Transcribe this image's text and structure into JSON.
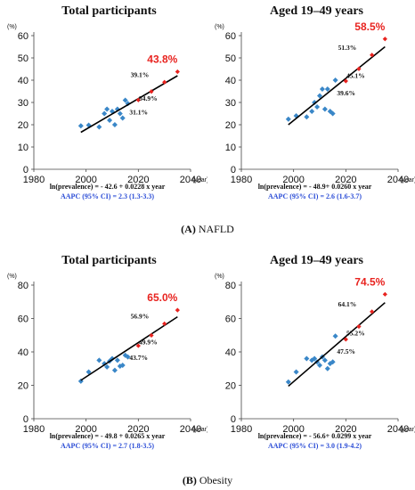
{
  "colors": {
    "observed": "#3a87c8",
    "projected": "#e8231f",
    "fit_line": "#000000",
    "aapc_text": "#2a4cd6"
  },
  "captions": [
    {
      "letter": "(A)",
      "text": "NAFLD"
    },
    {
      "letter": "(B)",
      "text": "Obesity"
    }
  ],
  "chart_data": [
    {
      "type": "scatter",
      "title": "Total participants",
      "y_unit": "(%)",
      "x_unit": "(year)",
      "xlim": [
        1980,
        2040
      ],
      "ylim": [
        0,
        60
      ],
      "xticks": [
        1980,
        2000,
        2020,
        2040
      ],
      "yticks": [
        0,
        10,
        20,
        30,
        40,
        50,
        60
      ],
      "observed": {
        "x": [
          1998,
          2001,
          2005,
          2007,
          2008,
          2009,
          2010,
          2011,
          2012,
          2013,
          2014,
          2015,
          2016
        ],
        "y": [
          19.5,
          19.8,
          19.0,
          25.0,
          27.0,
          22.0,
          26.0,
          20.0,
          27.0,
          25.0,
          23.0,
          31.0,
          29.5
        ]
      },
      "projected": {
        "x": [
          2020,
          2025,
          2030,
          2035
        ],
        "y": [
          31.1,
          34.9,
          39.1,
          43.8
        ]
      },
      "fit_line": {
        "x": [
          1998,
          2035
        ],
        "y": [
          16.6,
          42.0
        ]
      },
      "labels": [
        "39.1%",
        "34.9%",
        "31.1%"
      ],
      "highlight": "43.8%",
      "equation": "ln(prevalence) = - 42.6 + 0.0228  x year",
      "aapc": "AAPC (95% CI) =  2.3  (1.3-3.3)"
    },
    {
      "type": "scatter",
      "title": "Aged 19–49 years",
      "y_unit": "(%)",
      "x_unit": "(year)",
      "xlim": [
        1980,
        2040
      ],
      "ylim": [
        0,
        60
      ],
      "xticks": [
        1980,
        2000,
        2020,
        2040
      ],
      "yticks": [
        0,
        10,
        20,
        30,
        40,
        50,
        60
      ],
      "observed": {
        "x": [
          1998,
          2001,
          2005,
          2007,
          2008,
          2009,
          2010,
          2011,
          2012,
          2013,
          2014,
          2015,
          2016
        ],
        "y": [
          22.5,
          24.0,
          23.5,
          26.0,
          30.0,
          28.0,
          33.0,
          36.0,
          27.0,
          36.0,
          26.0,
          25.0,
          40.0
        ]
      },
      "projected": {
        "x": [
          2020,
          2025,
          2030,
          2035
        ],
        "y": [
          39.6,
          45.1,
          51.3,
          58.5
        ]
      },
      "fit_line": {
        "x": [
          1998,
          2035
        ],
        "y": [
          20.0,
          55.0
        ]
      },
      "labels": [
        "51.3%",
        "45.1%",
        "39.6%"
      ],
      "highlight": "58.5%",
      "equation": "ln(prevalence) = - 48.9+ 0.0260  x year",
      "aapc": "AAPC (95% CI) =  2.6  (1.6-3.7)"
    },
    {
      "type": "scatter",
      "title": "Total participants",
      "y_unit": "(%)",
      "x_unit": "(year)",
      "xlim": [
        1980,
        2040
      ],
      "ylim": [
        0,
        80
      ],
      "xticks": [
        1980,
        2000,
        2020,
        2040
      ],
      "yticks": [
        0,
        20,
        40,
        60,
        80
      ],
      "observed": {
        "x": [
          1998,
          2001,
          2005,
          2007,
          2008,
          2009,
          2010,
          2011,
          2012,
          2013,
          2014,
          2015,
          2016
        ],
        "y": [
          22.5,
          28.0,
          35.0,
          33.0,
          31.0,
          34.5,
          36.0,
          29.0,
          35.0,
          31.5,
          32.0,
          38.0,
          37.0
        ]
      },
      "projected": {
        "x": [
          2020,
          2025,
          2030,
          2035
        ],
        "y": [
          43.7,
          49.9,
          56.9,
          65.0
        ]
      },
      "fit_line": {
        "x": [
          1998,
          2035
        ],
        "y": [
          23.0,
          61.0
        ]
      },
      "labels": [
        "56.9%",
        "49.9%",
        "43.7%"
      ],
      "highlight": "65.0%",
      "equation": "ln(prevalence) = - 49.8 + 0.0265  x year",
      "aapc": "AAPC (95% CI) =  2.7  (1.8-3.5)"
    },
    {
      "type": "scatter",
      "title": "Aged 19–49 years",
      "y_unit": "(%)",
      "x_unit": "(year)",
      "xlim": [
        1980,
        2040
      ],
      "ylim": [
        0,
        80
      ],
      "xticks": [
        1980,
        2000,
        2020,
        2040
      ],
      "yticks": [
        0,
        20,
        40,
        60,
        80
      ],
      "observed": {
        "x": [
          1998,
          2001,
          2005,
          2007,
          2008,
          2009,
          2010,
          2011,
          2012,
          2013,
          2014,
          2015,
          2016
        ],
        "y": [
          22.0,
          28.0,
          36.0,
          35.0,
          36.0,
          34.0,
          32.0,
          37.0,
          35.0,
          30.0,
          33.0,
          34.0,
          49.5
        ]
      },
      "projected": {
        "x": [
          2020,
          2025,
          2030,
          2035
        ],
        "y": [
          47.5,
          55.2,
          64.1,
          74.5
        ]
      },
      "fit_line": {
        "x": [
          1998,
          2035
        ],
        "y": [
          19.5,
          69.5
        ]
      },
      "labels": [
        "64.1%",
        "55.2%",
        "47.5%"
      ],
      "highlight": "74.5%",
      "equation": "ln(prevalence) = - 56.6+ 0.0299  x year",
      "aapc": "AAPC (95% CI) =  3.0  (1.9-4.2)"
    }
  ]
}
